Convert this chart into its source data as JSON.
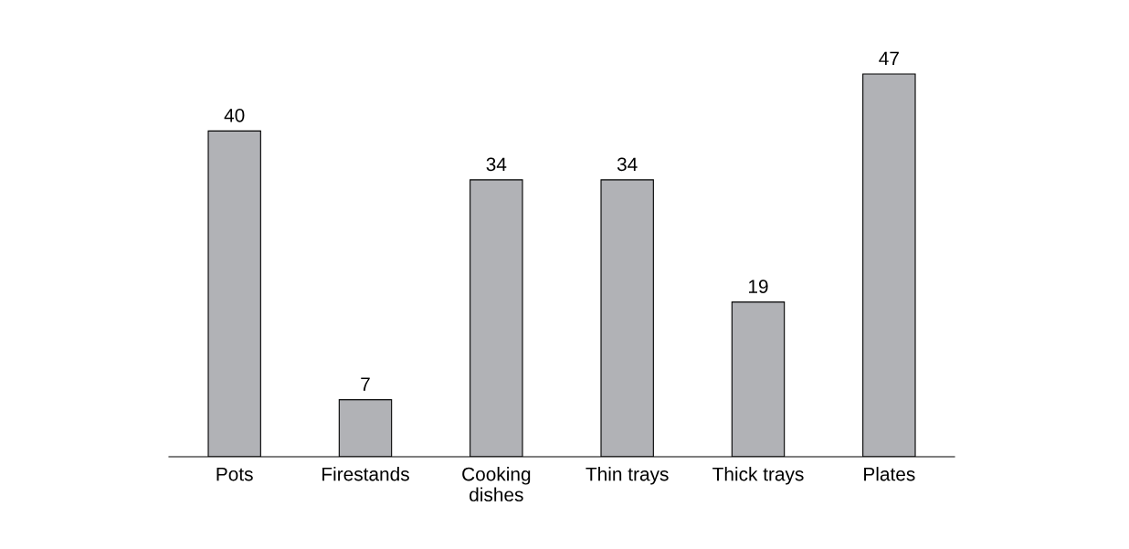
{
  "chart_data": {
    "type": "bar",
    "categories": [
      "Pots",
      "Firestands",
      "Cooking\ndishes",
      "Thin trays",
      "Thick trays",
      "Plates"
    ],
    "values": [
      40,
      7,
      34,
      34,
      19,
      47
    ],
    "color": "#b1b2b6",
    "data_labels": true,
    "grid": false,
    "tick_labels": "x"
  }
}
